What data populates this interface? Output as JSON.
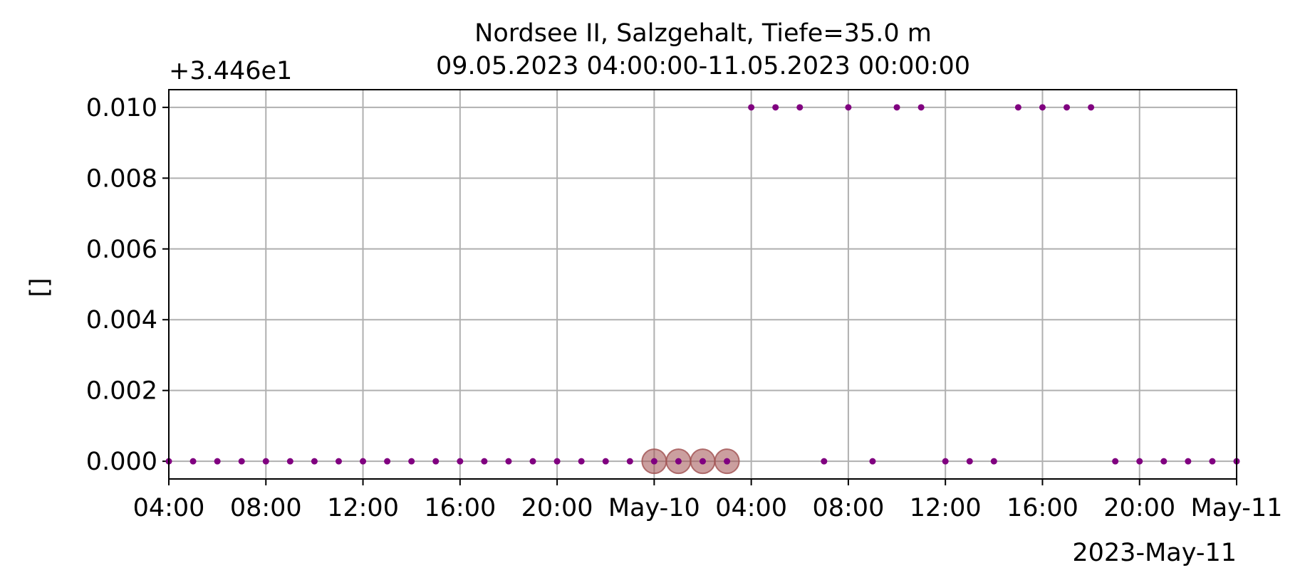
{
  "chart_data": {
    "type": "scatter",
    "title": "Nordsee II, Salzgehalt, Tiefe=35.0 m",
    "subtitle": "09.05.2023 04:00:00-11.05.2023 00:00:00",
    "ylabel": "[]",
    "y_offset_label": "+3.446e1",
    "x_offset_label": "2023-May-11",
    "ylim": [
      -0.0005,
      0.0105
    ],
    "xlim": [
      "2023-05-09 04:00",
      "2023-05-11 00:00"
    ],
    "grid": true,
    "y_ticks": [
      {
        "value": 0.0,
        "label": "0.000"
      },
      {
        "value": 0.002,
        "label": "0.002"
      },
      {
        "value": 0.004,
        "label": "0.004"
      },
      {
        "value": 0.006,
        "label": "0.006"
      },
      {
        "value": 0.008,
        "label": "0.008"
      },
      {
        "value": 0.01,
        "label": "0.010"
      }
    ],
    "x_ticks": [
      {
        "time": "2023-05-09 04:00",
        "label": "04:00"
      },
      {
        "time": "2023-05-09 08:00",
        "label": "08:00"
      },
      {
        "time": "2023-05-09 12:00",
        "label": "12:00"
      },
      {
        "time": "2023-05-09 16:00",
        "label": "16:00"
      },
      {
        "time": "2023-05-09 20:00",
        "label": "20:00"
      },
      {
        "time": "2023-05-10 00:00",
        "label": "May-10"
      },
      {
        "time": "2023-05-10 04:00",
        "label": "04:00"
      },
      {
        "time": "2023-05-10 08:00",
        "label": "08:00"
      },
      {
        "time": "2023-05-10 12:00",
        "label": "12:00"
      },
      {
        "time": "2023-05-10 16:00",
        "label": "16:00"
      },
      {
        "time": "2023-05-10 20:00",
        "label": "20:00"
      },
      {
        "time": "2023-05-11 00:00",
        "label": "May-11"
      }
    ],
    "point_color": "#800080",
    "highlight_color": "#a05050",
    "series": [
      {
        "points": [
          {
            "x": "2023-05-09 04:00",
            "y": 0.0
          },
          {
            "x": "2023-05-09 05:00",
            "y": 0.0
          },
          {
            "x": "2023-05-09 06:00",
            "y": 0.0
          },
          {
            "x": "2023-05-09 07:00",
            "y": 0.0
          },
          {
            "x": "2023-05-09 08:00",
            "y": 0.0
          },
          {
            "x": "2023-05-09 09:00",
            "y": 0.0
          },
          {
            "x": "2023-05-09 10:00",
            "y": 0.0
          },
          {
            "x": "2023-05-09 11:00",
            "y": 0.0
          },
          {
            "x": "2023-05-09 12:00",
            "y": 0.0
          },
          {
            "x": "2023-05-09 13:00",
            "y": 0.0
          },
          {
            "x": "2023-05-09 14:00",
            "y": 0.0
          },
          {
            "x": "2023-05-09 15:00",
            "y": 0.0
          },
          {
            "x": "2023-05-09 16:00",
            "y": 0.0
          },
          {
            "x": "2023-05-09 17:00",
            "y": 0.0
          },
          {
            "x": "2023-05-09 18:00",
            "y": 0.0
          },
          {
            "x": "2023-05-09 19:00",
            "y": 0.0
          },
          {
            "x": "2023-05-09 20:00",
            "y": 0.0
          },
          {
            "x": "2023-05-09 21:00",
            "y": 0.0
          },
          {
            "x": "2023-05-09 22:00",
            "y": 0.0
          },
          {
            "x": "2023-05-09 23:00",
            "y": 0.0
          },
          {
            "x": "2023-05-10 00:00",
            "y": 0.0,
            "flagged": true
          },
          {
            "x": "2023-05-10 01:00",
            "y": 0.0,
            "flagged": true
          },
          {
            "x": "2023-05-10 02:00",
            "y": 0.0,
            "flagged": true
          },
          {
            "x": "2023-05-10 03:00",
            "y": 0.0,
            "flagged": true
          },
          {
            "x": "2023-05-10 04:00",
            "y": 0.01
          },
          {
            "x": "2023-05-10 05:00",
            "y": 0.01
          },
          {
            "x": "2023-05-10 06:00",
            "y": 0.01
          },
          {
            "x": "2023-05-10 07:00",
            "y": 0.0
          },
          {
            "x": "2023-05-10 08:00",
            "y": 0.01
          },
          {
            "x": "2023-05-10 09:00",
            "y": 0.0
          },
          {
            "x": "2023-05-10 10:00",
            "y": 0.01
          },
          {
            "x": "2023-05-10 11:00",
            "y": 0.01
          },
          {
            "x": "2023-05-10 12:00",
            "y": 0.0
          },
          {
            "x": "2023-05-10 13:00",
            "y": 0.0
          },
          {
            "x": "2023-05-10 14:00",
            "y": 0.0
          },
          {
            "x": "2023-05-10 15:00",
            "y": 0.01
          },
          {
            "x": "2023-05-10 16:00",
            "y": 0.01
          },
          {
            "x": "2023-05-10 17:00",
            "y": 0.01
          },
          {
            "x": "2023-05-10 18:00",
            "y": 0.01
          },
          {
            "x": "2023-05-10 19:00",
            "y": 0.0
          },
          {
            "x": "2023-05-10 20:00",
            "y": 0.0
          },
          {
            "x": "2023-05-10 21:00",
            "y": 0.0
          },
          {
            "x": "2023-05-10 22:00",
            "y": 0.0
          },
          {
            "x": "2023-05-10 23:00",
            "y": 0.0
          },
          {
            "x": "2023-05-11 00:00",
            "y": 0.0
          }
        ]
      }
    ]
  }
}
